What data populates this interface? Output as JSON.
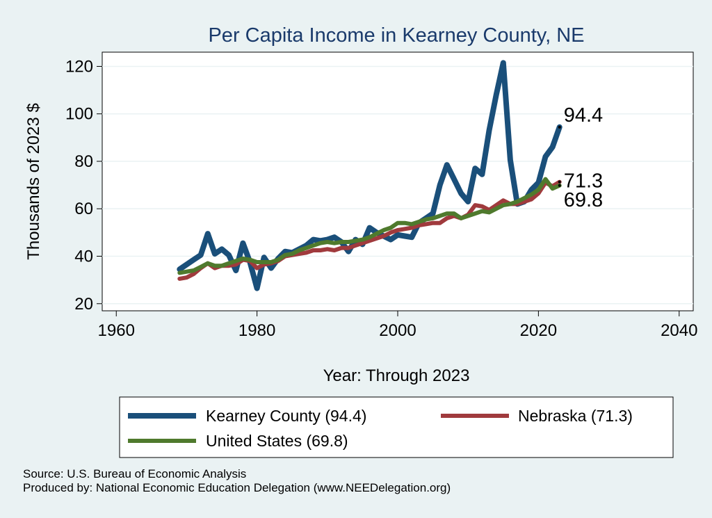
{
  "chart_data": {
    "type": "line",
    "title": "Per Capita Income in Kearney County, NE",
    "xlabel": "Year: Through 2023",
    "ylabel": "Thousands of 2023 $",
    "xlim": [
      1958,
      2042
    ],
    "ylim": [
      17,
      126
    ],
    "xticks": [
      1960,
      1980,
      2000,
      2020,
      2040
    ],
    "yticks": [
      20,
      40,
      60,
      80,
      100,
      120
    ],
    "grid": true,
    "x": [
      1969,
      1970,
      1971,
      1972,
      1973,
      1974,
      1975,
      1976,
      1977,
      1978,
      1979,
      1980,
      1981,
      1982,
      1983,
      1984,
      1985,
      1986,
      1987,
      1988,
      1989,
      1990,
      1991,
      1992,
      1993,
      1994,
      1995,
      1996,
      1997,
      1998,
      1999,
      2000,
      2001,
      2002,
      2003,
      2004,
      2005,
      2006,
      2007,
      2008,
      2009,
      2010,
      2011,
      2012,
      2013,
      2014,
      2015,
      2016,
      2017,
      2018,
      2019,
      2020,
      2021,
      2022,
      2023
    ],
    "series": [
      {
        "name": "Kearney County",
        "color": "#1a4f7a",
        "width": 8,
        "end_label": "94.4",
        "values": [
          34.5,
          36.5,
          38.5,
          40.5,
          49.5,
          41,
          43,
          40.5,
          34,
          45.5,
          37.5,
          26.5,
          39.5,
          35,
          39,
          42,
          41.5,
          43,
          44.5,
          47,
          46.5,
          47,
          48,
          46,
          42,
          47,
          45,
          52,
          50,
          48.5,
          47,
          49,
          48.5,
          48,
          54,
          56,
          58,
          70,
          78.5,
          72.5,
          66.5,
          63,
          77,
          74.5,
          93,
          108,
          121.5,
          80.5,
          62,
          63,
          68,
          71,
          82,
          86,
          94.4
        ]
      },
      {
        "name": "Nebraska",
        "color": "#a03a3d",
        "width": 6,
        "end_label": "71.3",
        "values": [
          30.5,
          31,
          32.5,
          35,
          37,
          35,
          36,
          36,
          36.5,
          38.5,
          38,
          35,
          36.5,
          37,
          38,
          40,
          40.5,
          41,
          41.5,
          42.5,
          42.5,
          43,
          42.5,
          43.5,
          43.5,
          44.5,
          45.5,
          46.5,
          47.5,
          48.5,
          50,
          51,
          51.5,
          52,
          53,
          53.5,
          54,
          54,
          56,
          57,
          56,
          57.5,
          61.5,
          61,
          59.5,
          61.5,
          63.5,
          62,
          62,
          63,
          64,
          66.5,
          71,
          69.5,
          71.3
        ]
      },
      {
        "name": "United States",
        "color": "#4f7a2d",
        "width": 6,
        "end_label": "69.8",
        "values": [
          33,
          33.5,
          34,
          35.5,
          37,
          36,
          36,
          37,
          38,
          39,
          38.5,
          37.5,
          37.5,
          37.5,
          38.5,
          40.5,
          41,
          42.5,
          43.5,
          44.5,
          45.5,
          46,
          45.5,
          46,
          46,
          46.5,
          47,
          48,
          49.5,
          51,
          52,
          54,
          54,
          53.5,
          54.5,
          55.5,
          56,
          57,
          58,
          58,
          56,
          57,
          58,
          59,
          58.5,
          60,
          61.5,
          62,
          63,
          64.5,
          66,
          68,
          72.5,
          68.5,
          69.8
        ]
      }
    ],
    "legend": [
      {
        "label": "Kearney County (94.4)",
        "color": "#1a4f7a"
      },
      {
        "label": "Nebraska (71.3)",
        "color": "#a03a3d"
      },
      {
        "label": "United States (69.8)",
        "color": "#4f7a2d"
      }
    ]
  },
  "footer": {
    "source": "Source: U.S. Bureau of Economic Analysis",
    "produced_by": "Produced by: National Economic Education Delegation (www.NEEDelegation.org)"
  }
}
